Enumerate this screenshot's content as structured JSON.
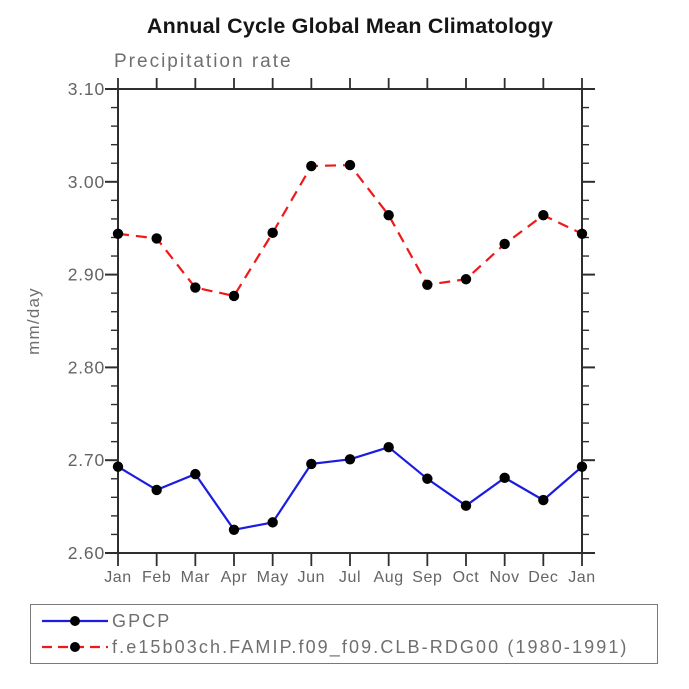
{
  "title": "Annual Cycle Global Mean Climatology",
  "chart_data": {
    "type": "line",
    "title": "Annual Cycle Global Mean Climatology",
    "subtitle": "Precipitation rate",
    "ylabel": "mm/day",
    "xlabel": "",
    "categories": [
      "Jan",
      "Feb",
      "Mar",
      "Apr",
      "May",
      "Jun",
      "Jul",
      "Aug",
      "Sep",
      "Oct",
      "Nov",
      "Dec",
      "Jan"
    ],
    "ylim": [
      2.6,
      3.1
    ],
    "y_minor_step": 0.02,
    "ytick_values": [
      2.6,
      2.7,
      2.8,
      2.9,
      3.0,
      3.1
    ],
    "ytick_labels": [
      "2.60",
      "2.70",
      "2.80",
      "2.90",
      "3.00",
      "3.10"
    ],
    "grid": false,
    "legend_position": "bottom-left-box",
    "series": [
      {
        "name": "GPCP",
        "line_style": "solid",
        "color": "#1c1ce0",
        "marker": "filled-circle",
        "marker_color": "#000000",
        "values": [
          2.693,
          2.668,
          2.685,
          2.625,
          2.633,
          2.696,
          2.701,
          2.714,
          2.68,
          2.651,
          2.681,
          2.657,
          2.693
        ]
      },
      {
        "name": "f.e15b03ch.FAMIP.f09_f09.CLB-RDG00 (1980-1991)",
        "line_style": "dashed",
        "color": "#f01818",
        "marker": "filled-circle",
        "marker_color": "#000000",
        "values": [
          2.944,
          2.939,
          2.886,
          2.877,
          2.945,
          3.017,
          3.018,
          2.964,
          2.889,
          2.895,
          2.933,
          2.964,
          2.944
        ]
      }
    ]
  },
  "style_colors": {
    "frame": "#2e2e2e",
    "tick_label": "#646464",
    "secondary_text": "#6f6f6f",
    "title_text": "#151515"
  }
}
